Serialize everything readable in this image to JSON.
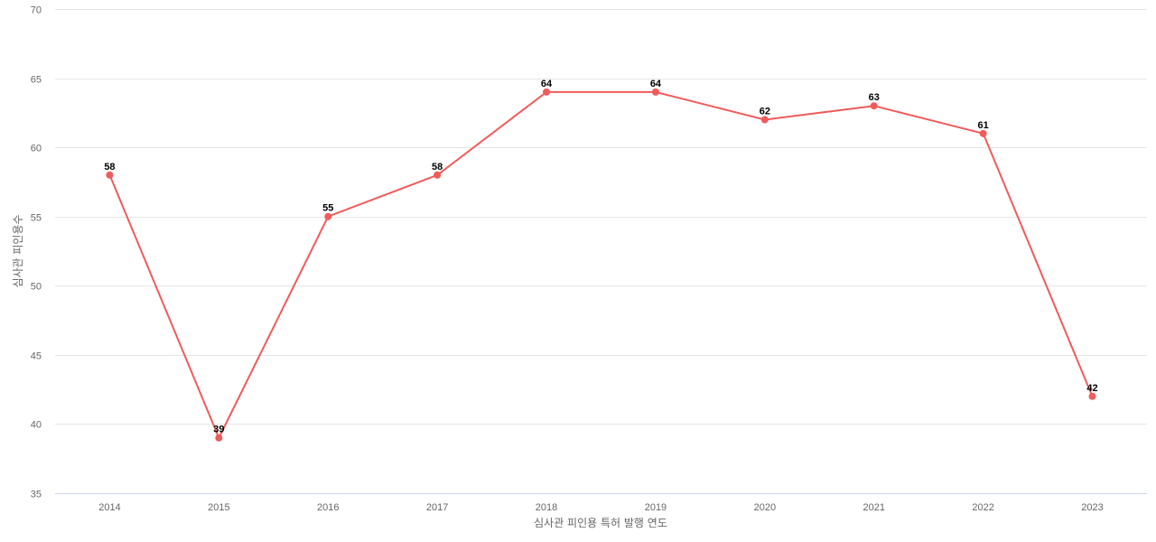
{
  "chart_data": {
    "type": "line",
    "title": "",
    "xlabel": "심사관 피인용 특허 발행 연도",
    "ylabel": "심사관 피인용수",
    "categories": [
      "2014",
      "2015",
      "2016",
      "2017",
      "2018",
      "2019",
      "2020",
      "2021",
      "2022",
      "2023"
    ],
    "series": [
      {
        "name": "심사관 피인용수",
        "values": [
          58,
          39,
          55,
          58,
          64,
          64,
          62,
          63,
          61,
          42
        ],
        "color": "#ef5b5b"
      }
    ],
    "ylim": [
      35,
      70
    ],
    "yticks": [
      35,
      40,
      45,
      50,
      55,
      60,
      65,
      70
    ],
    "grid": true,
    "data_labels": true,
    "legend": "none"
  }
}
